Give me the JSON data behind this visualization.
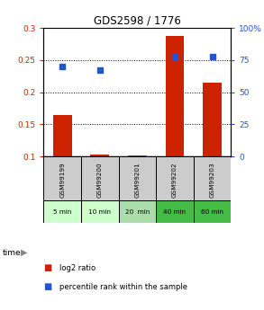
{
  "title": "GDS2598 / 1776",
  "samples": [
    "GSM99199",
    "GSM99200",
    "GSM99201",
    "GSM99202",
    "GSM99203"
  ],
  "time_labels": [
    "5 min",
    "10 min",
    "20  min",
    "40 min",
    "60 min"
  ],
  "log2_ratio": [
    0.165,
    0.103,
    0.101,
    0.288,
    0.215
  ],
  "percentile_rank": [
    70,
    67,
    0,
    78,
    78
  ],
  "ylim_left": [
    0.1,
    0.3
  ],
  "ylim_right": [
    0,
    100
  ],
  "yticks_left": [
    0.1,
    0.15,
    0.2,
    0.25,
    0.3
  ],
  "yticks_right": [
    0,
    25,
    50,
    75,
    100
  ],
  "bar_color": "#cc2200",
  "dot_color": "#2255cc",
  "bar_bottom": 0.1,
  "time_colors": [
    "#ccffcc",
    "#ccffcc",
    "#aaddaa",
    "#44bb44",
    "#44bb44"
  ],
  "sample_bg": "#cccccc",
  "legend_bar_label": "log2 ratio",
  "legend_dot_label": "percentile rank within the sample"
}
